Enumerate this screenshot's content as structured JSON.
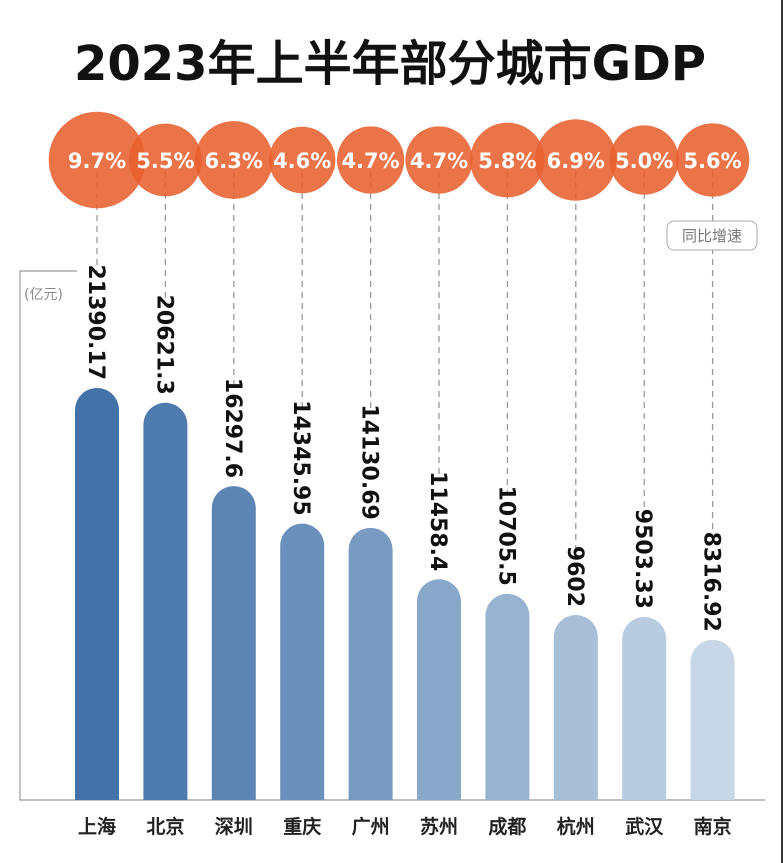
{
  "chart_data": {
    "type": "bar",
    "title": "2023年上半年部分城市GDP",
    "unit_label": "(亿元)",
    "growth_label": "同比增速",
    "categories": [
      "上海",
      "北京",
      "深圳",
      "重庆",
      "广州",
      "苏州",
      "成都",
      "杭州",
      "武汉",
      "南京"
    ],
    "values": [
      21390.17,
      20621.3,
      16297.6,
      14345.95,
      14130.69,
      11458.4,
      10705.5,
      9602,
      9503.33,
      8316.92
    ],
    "value_labels": [
      "21390.17",
      "20621.3",
      "16297.6",
      "14345.95",
      "14130.69",
      "11458.4",
      "10705.5",
      "9602",
      "9503.33",
      "8316.92"
    ],
    "growth": [
      9.7,
      5.5,
      6.3,
      4.6,
      4.7,
      4.7,
      5.8,
      6.9,
      5.0,
      5.6
    ],
    "growth_labels": [
      "9.7%",
      "5.5%",
      "6.3%",
      "4.6%",
      "4.7%",
      "4.7%",
      "5.8%",
      "6.9%",
      "5.0%",
      "5.6%"
    ],
    "ylim": [
      0,
      21390.17
    ],
    "grid": false,
    "colors": {
      "bar_dark": "#4272a8",
      "bar_light": "#c8d7e7",
      "bubble": "#e8602f",
      "text": "#111111",
      "guide": "#999999"
    }
  }
}
